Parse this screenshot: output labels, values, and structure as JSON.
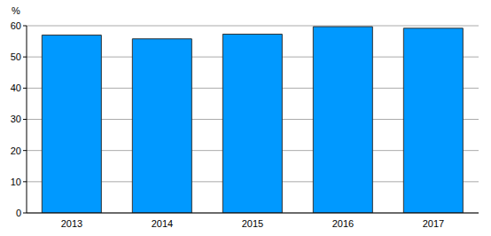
{
  "chart_data": {
    "type": "bar",
    "y_label": "%",
    "categories": [
      "2013",
      "2014",
      "2015",
      "2016",
      "2017"
    ],
    "values": [
      57.0,
      55.8,
      57.3,
      59.7,
      59.2
    ],
    "color": "#0099ff",
    "ylim": [
      0,
      60
    ],
    "yticks": [
      0,
      10,
      20,
      30,
      40,
      50,
      60
    ],
    "grid": true
  }
}
